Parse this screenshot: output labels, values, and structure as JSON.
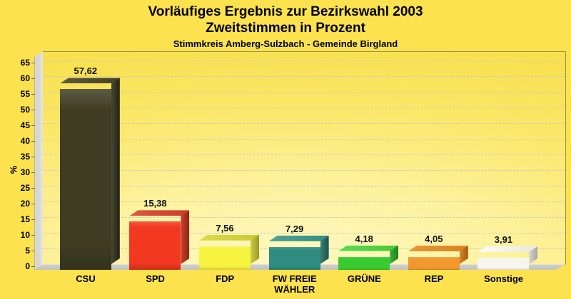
{
  "page": {
    "background_color": "#FCE24F"
  },
  "chart_data": {
    "type": "bar",
    "title": "Vorläufiges Ergebnis zur Bezirkswahl 2003",
    "subtitle": "Zweitstimmen in Prozent",
    "caption": "Stimmkreis Amberg-Sulzbach - Gemeinde Birgland",
    "ylabel": "%",
    "ylim": [
      0,
      65
    ],
    "ytick_step": 5,
    "grid": "horizontal-dashed",
    "legend": "none",
    "decimal_separator": ",",
    "style": "3d-bars on yellow gradient backdrop, gray side wall and floor",
    "categories": [
      "CSU",
      "SPD",
      "FDP",
      "FW FREIE WÄHLER",
      "GRÜNE",
      "REP",
      "Sonstige"
    ],
    "values": [
      57.62,
      15.38,
      7.56,
      7.29,
      4.18,
      4.05,
      3.91
    ],
    "bars": [
      {
        "category": "CSU",
        "value": 57.62,
        "value_label": "57,62",
        "color": "#3F3C22",
        "color_top": "#4B4827",
        "color_side": "#2E2C17"
      },
      {
        "category": "SPD",
        "value": 15.38,
        "value_label": "15,38",
        "color": "#F23820",
        "color_top": "#DC422B",
        "color_side": "#BF2B17"
      },
      {
        "category": "FDP",
        "value": 7.56,
        "value_label": "7,56",
        "color": "#F7F440",
        "color_top": "#DBD837",
        "color_side": "#C8C42D"
      },
      {
        "category": "FW FREIE WÄHLER",
        "value": 7.29,
        "value_label": "7,29",
        "color": "#2F8C81",
        "color_top": "#38998C",
        "color_side": "#1F6A60"
      },
      {
        "category": "GRÜNE",
        "value": 4.18,
        "value_label": "4,18",
        "color": "#38CC32",
        "color_top": "#4CD83F",
        "color_side": "#27A323"
      },
      {
        "category": "REP",
        "value": 4.05,
        "value_label": "4,05",
        "color": "#F1982F",
        "color_top": "#E98B21",
        "color_side": "#CF7414"
      },
      {
        "category": "Sonstige",
        "value": 3.91,
        "value_label": "3,91",
        "color": "#F6F6EE",
        "color_top": "#FCFCF5",
        "color_side": "#D3D3C9"
      }
    ]
  }
}
